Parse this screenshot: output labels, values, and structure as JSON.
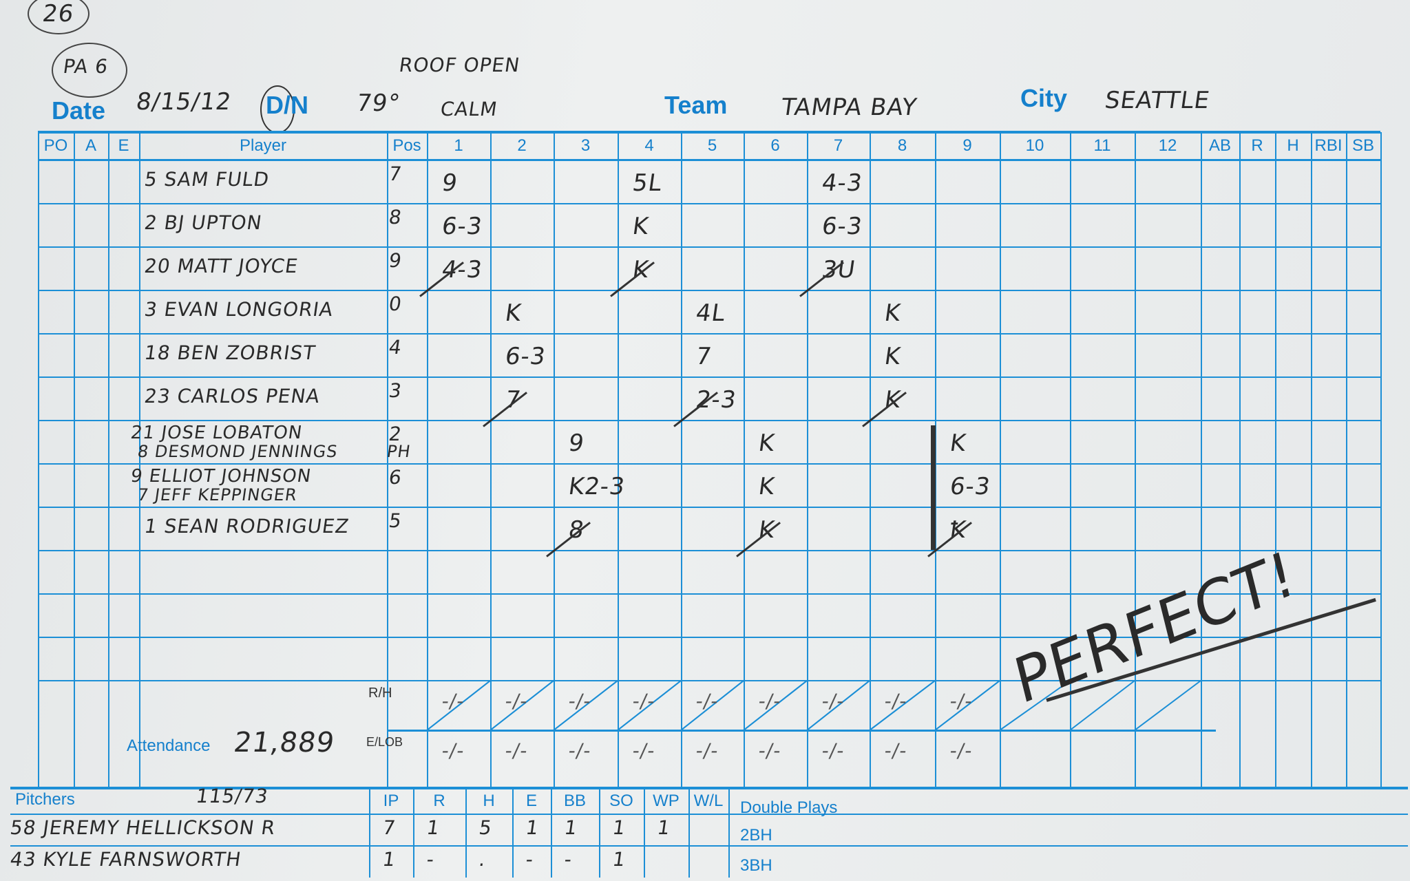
{
  "header": {
    "page_number": "26",
    "pa": "PA 6",
    "note": "ROOF OPEN",
    "date_label": "Date",
    "date": "8/15/12",
    "day_night": "D/N",
    "day_night_selected": "D",
    "temperature": "79°",
    "wind": "CALM",
    "team_label": "Team",
    "team": "TAMPA BAY",
    "city_label": "City",
    "city": "SEATTLE"
  },
  "columns": {
    "po": "PO",
    "a": "A",
    "e": "E",
    "player": "Player",
    "pos": "Pos",
    "innings": [
      "1",
      "2",
      "3",
      "4",
      "5",
      "6",
      "7",
      "8",
      "9",
      "10",
      "11",
      "12"
    ],
    "ab": "AB",
    "r": "R",
    "h": "H",
    "rbi": "RBI",
    "sb": "SB"
  },
  "lineup": [
    {
      "name": "5 SAM FULD",
      "pos": "7",
      "plays": [
        [
          1,
          "9"
        ],
        [
          4,
          "5L"
        ],
        [
          7,
          "4-3"
        ]
      ]
    },
    {
      "name": "2 BJ UPTON",
      "pos": "8",
      "plays": [
        [
          1,
          "6-3"
        ],
        [
          4,
          "K"
        ],
        [
          7,
          "6-3"
        ]
      ]
    },
    {
      "name": "20 MATT JOYCE",
      "pos": "9",
      "plays": [
        [
          1,
          "4-3"
        ],
        [
          4,
          "K"
        ],
        [
          7,
          "3U"
        ]
      ]
    },
    {
      "name": "3 EVAN LONGORIA",
      "pos": "0",
      "plays": [
        [
          2,
          "K"
        ],
        [
          5,
          "4L"
        ],
        [
          8,
          "K"
        ]
      ]
    },
    {
      "name": "18 BEN ZOBRIST",
      "pos": "4",
      "plays": [
        [
          2,
          "6-3"
        ],
        [
          5,
          "7"
        ],
        [
          8,
          "K"
        ]
      ]
    },
    {
      "name": "23 CARLOS PENA",
      "pos": "3",
      "plays": [
        [
          2,
          "7"
        ],
        [
          5,
          "2-3"
        ],
        [
          8,
          "K"
        ]
      ]
    },
    {
      "name": "21 JOSE LOBATON",
      "sub": "8 DESMOND JENNINGS",
      "pos": "2",
      "subpos": "PH",
      "plays": [
        [
          3,
          "9"
        ],
        [
          6,
          "K"
        ],
        [
          9,
          "K"
        ]
      ]
    },
    {
      "name": "9 ELLIOT JOHNSON",
      "sub": "7 JEFF KEPPINGER",
      "pos": "6",
      "plays": [
        [
          3,
          "K2-3"
        ],
        [
          6,
          "K"
        ],
        [
          9,
          "6-3"
        ]
      ]
    },
    {
      "name": "1 SEAN RODRIGUEZ",
      "pos": "5",
      "plays": [
        [
          3,
          "8"
        ],
        [
          6,
          "K"
        ],
        [
          9,
          "Ꝁ"
        ]
      ]
    }
  ],
  "inning_end_after_row": [
    2,
    5,
    8,
    2,
    5,
    8,
    2,
    5,
    8
  ],
  "totals": {
    "rh_label": "R/H",
    "elob_label": "E/LOB",
    "rh": [
      "-/-",
      "-/-",
      "-/-",
      "-/-",
      "-/-",
      "-/-",
      "-/-",
      "-/-",
      "-/-"
    ],
    "elob": [
      "-/-",
      "-/-",
      "-/-",
      "-/-",
      "-/-",
      "-/-",
      "-/-",
      "-/-",
      "-/-"
    ]
  },
  "attendance_label": "Attendance",
  "attendance": "21,889",
  "pitchers": {
    "label": "Pitchers",
    "pitch_count": "115/73",
    "cols": [
      "IP",
      "R",
      "H",
      "E",
      "BB",
      "SO",
      "WP",
      "W/L"
    ],
    "rows": [
      {
        "name": "58 JEREMY HELLICKSON R",
        "stats": [
          "7",
          "1",
          "5",
          "1",
          "1",
          "1",
          "1",
          ""
        ]
      },
      {
        "name": "43 KYLE FARNSWORTH",
        "stats": [
          "1",
          "-",
          ".",
          "-",
          "-",
          "1",
          "",
          ""
        ]
      }
    ]
  },
  "extras": {
    "double_plays": "Double Plays",
    "doubles": "2BH",
    "triples": "3BH"
  },
  "annotation": "PERFECT!"
}
